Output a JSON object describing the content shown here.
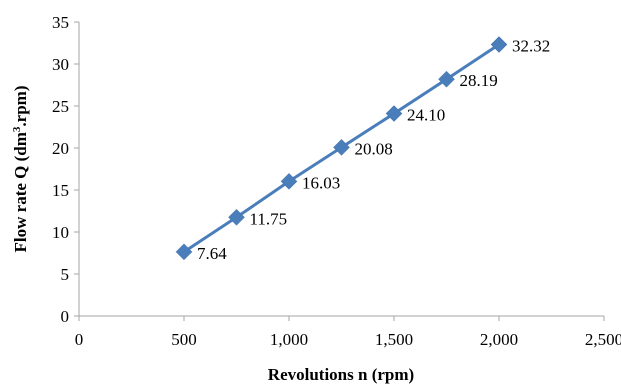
{
  "chart_data": {
    "type": "line",
    "xlabel": "Revolutions n (rpm)",
    "ylabel_main": "Flow rate Q (dm",
    "ylabel_sup": "3",
    "ylabel_rest": ".rpm)",
    "xlim": [
      0,
      2500
    ],
    "ylim": [
      0,
      35
    ],
    "x_ticks": [
      0,
      500,
      1000,
      1500,
      2000,
      2500
    ],
    "x_tick_labels": [
      "0",
      "500",
      "1,000",
      "1,500",
      "2,000",
      "2,500"
    ],
    "y_ticks": [
      0,
      5,
      10,
      15,
      20,
      25,
      30,
      35
    ],
    "y_tick_labels": [
      "0",
      "5",
      "10",
      "15",
      "20",
      "25",
      "30",
      "35"
    ],
    "grid": false,
    "legend": "none",
    "series": [
      {
        "color": "#4a7ebb",
        "marker": "diamond",
        "x": [
          500,
          750,
          1000,
          1250,
          1500,
          1750,
          2000
        ],
        "y": [
          7.64,
          11.75,
          16.03,
          20.08,
          24.1,
          28.19,
          32.32
        ],
        "labels": [
          "7.64",
          "11.75",
          "16.03",
          "20.08",
          "24.10",
          "28.19",
          "32.32"
        ]
      }
    ]
  }
}
